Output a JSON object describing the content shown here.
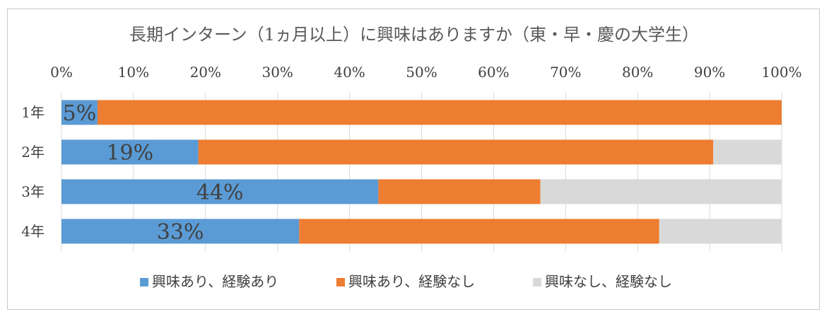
{
  "chart_data": {
    "type": "bar",
    "orientation": "horizontal",
    "stacked": "percent",
    "title": "長期インターン（1ヵ月以上）に興味はありますか（東・早・慶の大学生）",
    "categories": [
      "1年",
      "2年",
      "3年",
      "4年"
    ],
    "xlim": [
      0,
      100
    ],
    "x_ticks": [
      "0%",
      "10%",
      "20%",
      "30%",
      "40%",
      "50%",
      "60%",
      "70%",
      "80%",
      "90%",
      "100%"
    ],
    "x_axis_position": "top",
    "grid": true,
    "legend_position": "bottom",
    "series": [
      {
        "name": "興味あり、経験あり",
        "color": "#5B9BD5",
        "values": [
          5,
          19,
          44,
          33
        ],
        "data_labels": [
          "5%",
          "19%",
          "44%",
          "33%"
        ]
      },
      {
        "name": "興味あり、経験なし",
        "color": "#ED7D31",
        "values": [
          95,
          71.5,
          22.5,
          50
        ]
      },
      {
        "name": "興味なし、経験なし",
        "color": "#D9D9D9",
        "values": [
          0,
          9.5,
          33.5,
          17
        ]
      }
    ]
  }
}
